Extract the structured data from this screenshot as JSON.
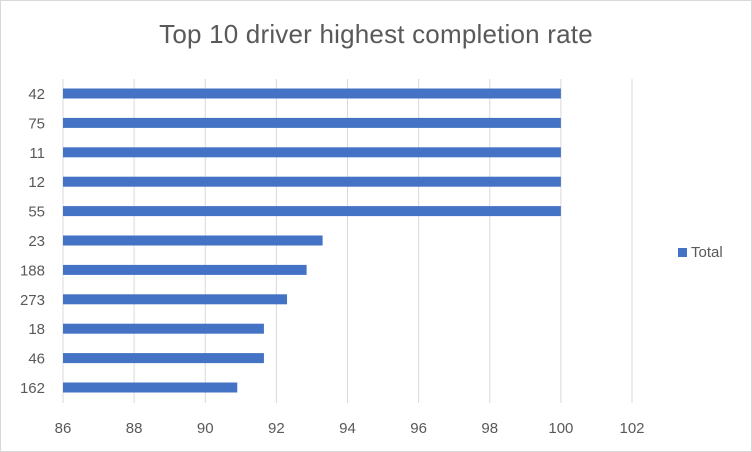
{
  "chart_data": {
    "type": "bar",
    "orientation": "horizontal",
    "title": "Top 10 driver highest completion rate",
    "categories": [
      "42",
      "75",
      "11",
      "12",
      "55",
      "23",
      "188",
      "273",
      "18",
      "46",
      "162"
    ],
    "series": [
      {
        "name": "Total",
        "color": "#4472c4",
        "values": [
          100,
          100,
          100,
          100,
          100,
          93.3,
          92.85,
          92.3,
          91.65,
          91.65,
          90.9
        ]
      }
    ],
    "xlim": [
      86,
      102
    ],
    "xticks": [
      "86",
      "88",
      "90",
      "92",
      "94",
      "96",
      "98",
      "100",
      "102"
    ],
    "xlabel": "",
    "ylabel": "",
    "grid": "vertical",
    "legend_position": "right"
  }
}
